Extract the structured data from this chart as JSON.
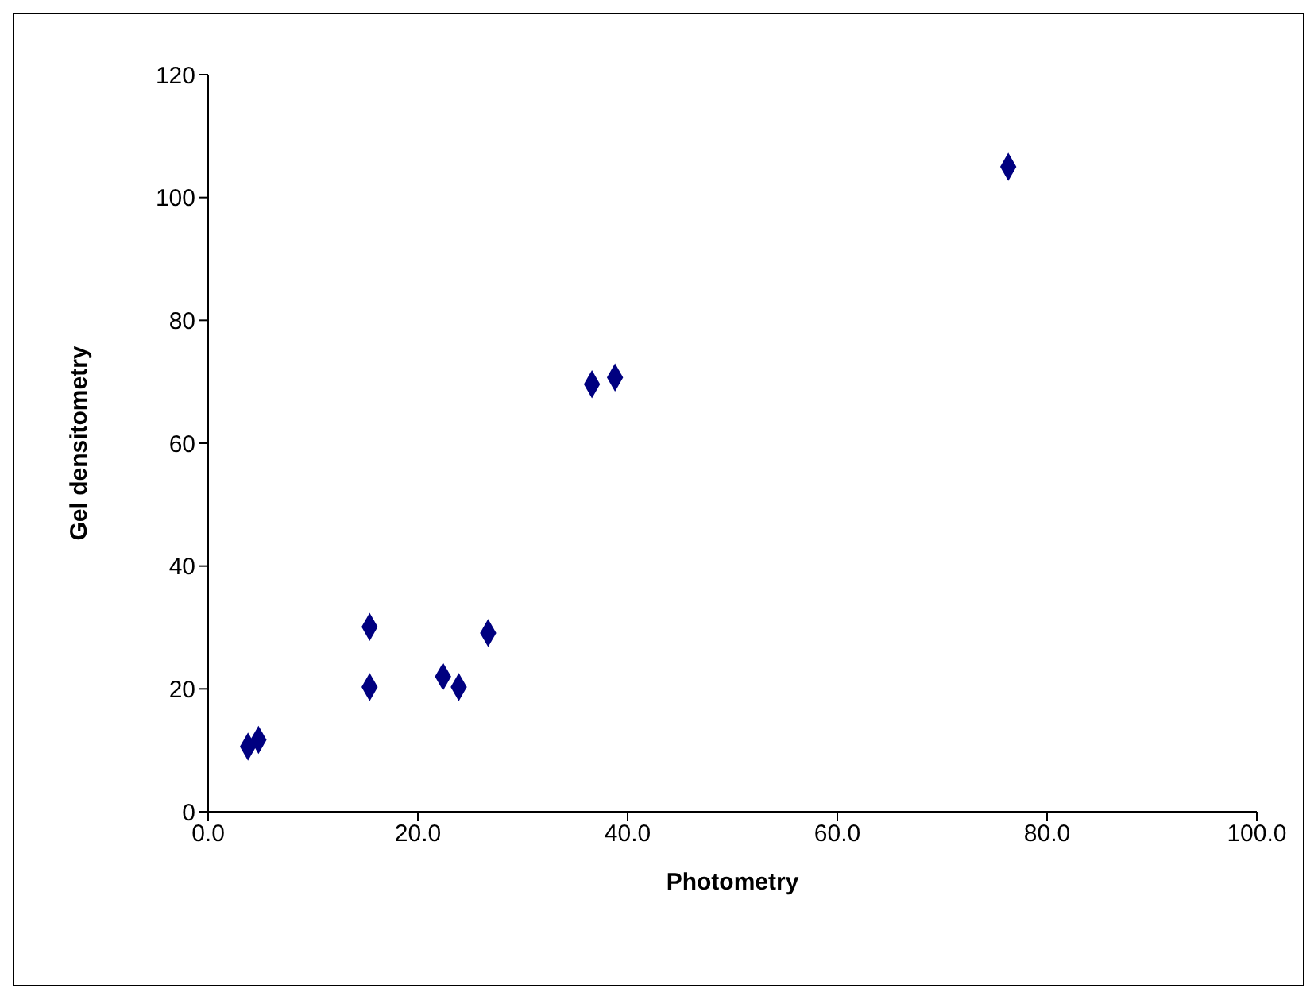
{
  "chart_data": {
    "type": "scatter",
    "xlabel": "Photometry",
    "ylabel": "Gel densitometry",
    "x": [
      3.8,
      4.8,
      15.4,
      15.4,
      22.4,
      23.9,
      26.7,
      36.6,
      38.8,
      76.3
    ],
    "values": [
      10.6,
      11.7,
      30.1,
      20.3,
      22.0,
      20.3,
      29.1,
      69.6,
      70.7,
      105.0
    ],
    "color": "#000080",
    "marker": "diamond",
    "grid": false,
    "legend": false,
    "xlim": [
      0,
      100
    ],
    "xticks": [
      {
        "value": 0,
        "label": "0.0"
      },
      {
        "value": 20,
        "label": "20.0"
      },
      {
        "value": 40,
        "label": "40.0"
      },
      {
        "value": 60,
        "label": "60.0"
      },
      {
        "value": 80,
        "label": "80.0"
      },
      {
        "value": 100,
        "label": "100.0"
      }
    ],
    "ylim": [
      0,
      120
    ],
    "yticks": [
      0,
      20,
      40,
      60,
      80,
      100,
      120
    ]
  }
}
